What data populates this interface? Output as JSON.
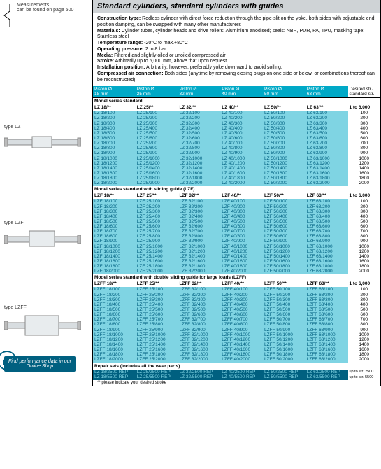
{
  "left": {
    "measurements": "Measurements",
    "measurements2": "can be found on page 500",
    "type_lz": "type LZ",
    "type_lzf": "type LZF",
    "type_lzff": "type LZFF",
    "tip": "Find performance data in our Online Shop"
  },
  "title": "Standard cylinders, standard cylinders with guides",
  "desc": {
    "l1b": "Construction type:",
    "l1": " Rodless cylinder with direct force reduction through the pipe-slit on the yoke, both sides with adjustable end position damping, can be swapped with many other manufacturers",
    "l2b": "Materials:",
    "l2": " Cylinder tubes, cylinder heads and drive rollers: Aluminium anodised; seals: NBR, PUR, PA, TPU, masking tape: Stainless steel",
    "l3b": "Temperature range:",
    "l3": " -20°C to max.+80°C",
    "l4b": "Operating pressure:",
    "l4": " 2 to 8 bar",
    "l5b": "Media:",
    "l5": " Filtered and slightly oiled or unoiled compressed air",
    "l6b": "Stroke:",
    "l6": " Arbitrarily up to 6,000 mm, above that upon request",
    "l7b": "Installation position:",
    "l7": " Arbitrarily, however, preferably yoke downward to avoid soiling.",
    "l8b": "Compressed air connection:",
    "l8": " Both sides (anytime by removing closing plugs on one side or below, or combinations thereof can be reconstructed)"
  },
  "hdr": {
    "c1a": "Piston Ø",
    "c1b": "18 mm",
    "c2a": "Piston Ø",
    "c2b": "25 mm",
    "c3a": "Piston Ø",
    "c3b": "32 mm",
    "c4a": "Piston Ø",
    "c4b": "40 mm",
    "c5a": "Piston Ø",
    "c5b": "50 mm",
    "c6a": "Piston Ø",
    "c6b": "63 mm",
    "c7a": "Desired str./",
    "c7b": "standard str."
  },
  "s1": {
    "title": "Model series standard",
    "m1": "LZ 18/**",
    "m2": "LZ 25/**",
    "m3": "LZ 32/**",
    "m4": "LZ 40/**",
    "m5": "LZ 50/**",
    "m6": "LZ 63/**",
    "m7": "1 to 6,000"
  },
  "s2": {
    "title": "Model series standard with sliding guide (LZF)",
    "m1": "LZF 18/**",
    "m2": "LZF 25/**",
    "m3": "LZF 32/**",
    "m4": "LZF 40/**",
    "m5": "LZF 50/**",
    "m6": "LZF 63/**",
    "m7": "1 to 6,000"
  },
  "s3": {
    "title": "Model series standard with double sliding guide for large loads (LZFF)",
    "m1": "LZFF 18/**",
    "m2": "LZFF 25/**",
    "m3": "LZFF 32/**",
    "m4": "LZFF 40/**",
    "m5": "LZFF 50/**",
    "m6": "LZFF 63/**",
    "m7": "1 to 6,000"
  },
  "strokes": [
    "100",
    "200",
    "300",
    "400",
    "500",
    "600",
    "700",
    "800",
    "900",
    "1000",
    "1200",
    "1400",
    "1600",
    "1800",
    "2000"
  ],
  "s4": {
    "title": "Repair sets (includes all the wear parts)",
    "r1c1": "LZ 18/2500 REP",
    "r1c2": "LZ 25/2500 REP",
    "r1c3": "LZ 32/2500 REP",
    "r1c4": "LZ 40/2500 REP",
    "r1c5": "LZ 50/2500 REP",
    "r1c6": "LZ 63/2500 REP",
    "r1c7": "up to str. 2500",
    "r2c1": "LZ 18/5500 REP",
    "r2c2": "LZ 25/5500 REP",
    "r2c3": "LZ 32/5500 REP",
    "r2c4": "LZ 40/5500 REP",
    "r2c5": "LZ 50/5500 REP",
    "r2c6": "LZ 63/5500 REP",
    "r2c7": "up to str. 5500"
  },
  "footnote": "** please indicate your desired stroke"
}
